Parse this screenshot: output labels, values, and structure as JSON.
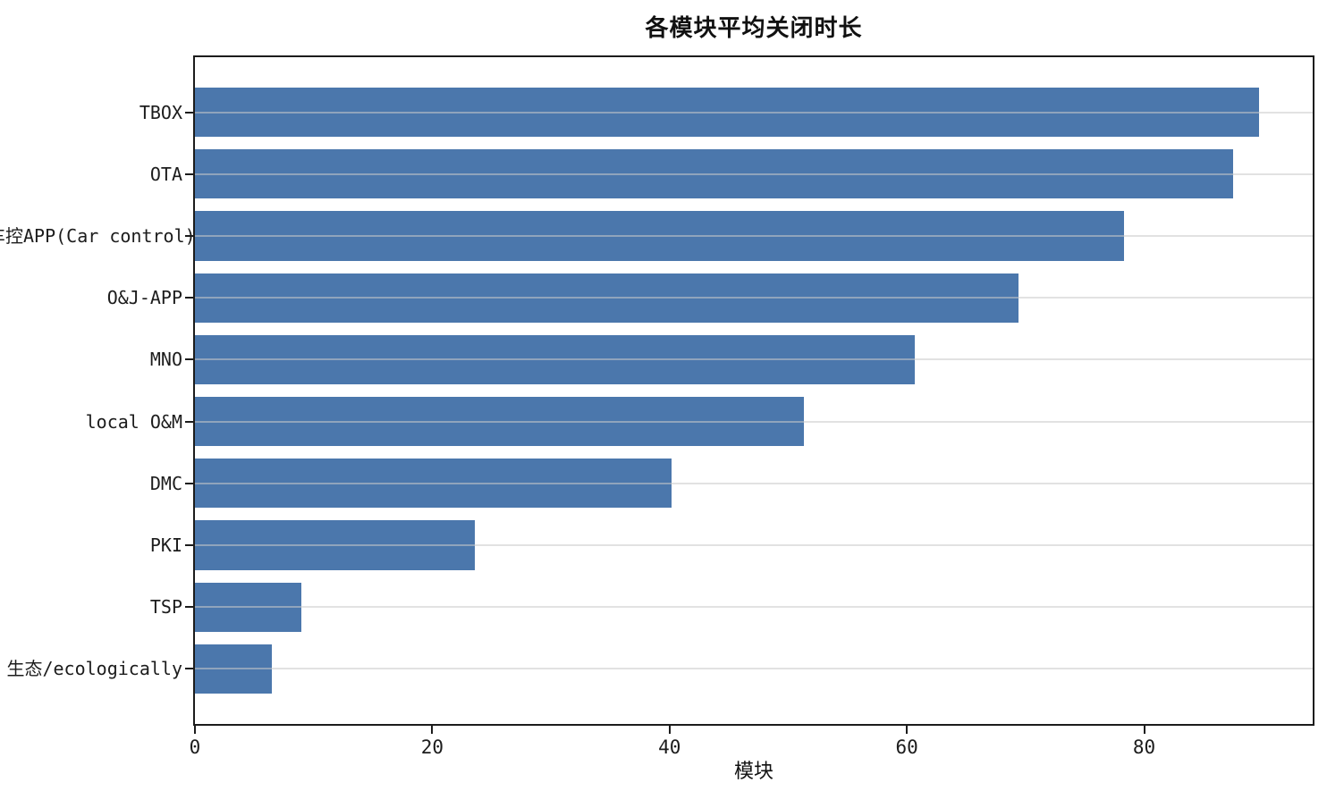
{
  "chart_data": {
    "type": "bar",
    "orientation": "horizontal",
    "title": "各模块平均关闭时长",
    "xlabel": "模块",
    "ylabel": "",
    "categories": [
      "TBOX",
      "OTA",
      "车控APP(Car control)",
      "O&J-APP",
      "MNO",
      "local O&M",
      "DMC",
      "PKI",
      "TSP",
      "生态/ecologically"
    ],
    "values": [
      89.7,
      87.5,
      78.3,
      69.4,
      60.7,
      51.3,
      40.2,
      23.6,
      9.0,
      6.5
    ],
    "xticks": [
      0,
      20,
      40,
      60,
      80
    ],
    "xlim": [
      0,
      94.2
    ],
    "bar_color": "#4B77AC",
    "grid": "horizontal-category-lines",
    "legend": null
  }
}
